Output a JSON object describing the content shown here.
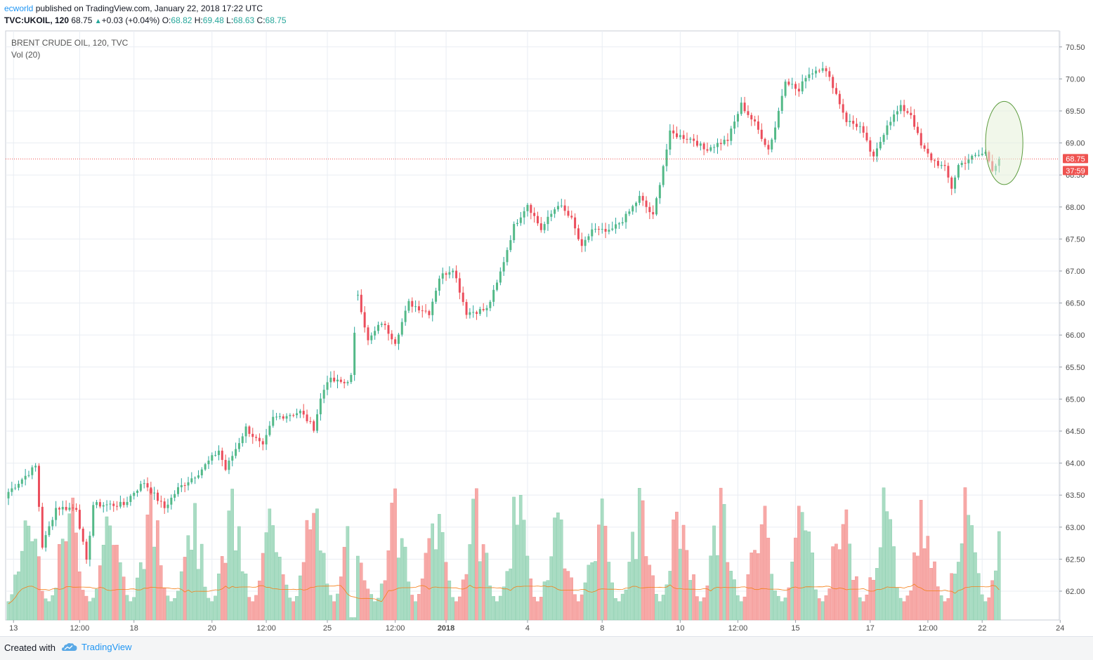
{
  "header": {
    "author": "ecworld",
    "published_text": "published on TradingView.com, January 22, 2018 17:22 UTC",
    "symbol": "TVC:UKOIL, 120",
    "last": "68.75",
    "change": "+0.03 (+0.04%)",
    "o_label": "O:",
    "o_value": "68.82",
    "h_label": "H:",
    "h_value": "69.48",
    "l_label": "L:",
    "l_value": "68.63",
    "c_label": "C:",
    "c_value": "68.75"
  },
  "legend": {
    "title": "BRENT CRUDE OIL, 120, TVC",
    "volume": "Vol (20)"
  },
  "price_badge": "68.75",
  "countdown_badge": "37:59",
  "footer": {
    "created_with": "Created with",
    "brand": "TradingView"
  },
  "colors": {
    "up": "#26a69a",
    "down": "#ef5350",
    "up_body": "#53b987",
    "down_body": "#eb4d5c",
    "vol_up": "#a9dcc3",
    "vol_down": "#f7a9a7",
    "ma": "#f57f17",
    "grid": "#e9edf3",
    "ellipse_fill": "#e6f0d8",
    "ellipse_stroke": "#5b9b3d"
  },
  "chart_data": {
    "type": "candlestick",
    "title": "BRENT CRUDE OIL, 120, TVC",
    "ylim": [
      61.55,
      70.75
    ],
    "y_ticks": [
      "62.00",
      "62.50",
      "63.00",
      "63.50",
      "64.00",
      "64.50",
      "65.00",
      "65.50",
      "66.00",
      "66.50",
      "67.00",
      "67.50",
      "68.00",
      "68.50",
      "69.00",
      "69.50",
      "70.00",
      "70.50"
    ],
    "x_ticks": [
      {
        "label": "13",
        "i": 1.5
      },
      {
        "label": "12:00",
        "i": 21
      },
      {
        "label": "18",
        "i": 37
      },
      {
        "label": "20",
        "i": 60
      },
      {
        "label": "12:00",
        "i": 76
      },
      {
        "label": "25",
        "i": 94
      },
      {
        "label": "12:00",
        "i": 114
      },
      {
        "label": "2018",
        "i": 129
      },
      {
        "label": "4",
        "i": 153
      },
      {
        "label": "8",
        "i": 175
      },
      {
        "label": "10",
        "i": 198
      },
      {
        "label": "12:00",
        "i": 215
      },
      {
        "label": "15",
        "i": 232
      },
      {
        "label": "17",
        "i": 254
      },
      {
        "label": "12:00",
        "i": 271
      },
      {
        "label": "22",
        "i": 287
      },
      {
        "label": "24",
        "i": 310
      }
    ],
    "last_price": 68.75,
    "highlight_ellipse": {
      "center_i": 293.5,
      "center_price": 69.0,
      "radius_i": 5.5,
      "radius_price": 0.65
    },
    "anchors": [
      [
        0,
        63.55
      ],
      [
        8,
        63.95
      ],
      [
        10,
        62.7
      ],
      [
        14,
        63.3
      ],
      [
        20,
        63.3
      ],
      [
        23,
        62.45
      ],
      [
        25,
        63.35
      ],
      [
        34,
        63.35
      ],
      [
        37,
        63.55
      ],
      [
        40,
        63.7
      ],
      [
        46,
        63.3
      ],
      [
        50,
        63.6
      ],
      [
        56,
        63.85
      ],
      [
        62,
        64.2
      ],
      [
        64,
        63.9
      ],
      [
        70,
        64.55
      ],
      [
        75,
        64.25
      ],
      [
        78,
        64.7
      ],
      [
        86,
        64.8
      ],
      [
        90,
        64.55
      ],
      [
        92,
        65.0
      ],
      [
        94,
        65.3
      ],
      [
        99,
        65.25
      ],
      [
        101,
        65.35
      ],
      [
        103,
        66.65
      ],
      [
        106,
        65.9
      ],
      [
        110,
        66.2
      ],
      [
        114,
        65.9
      ],
      [
        118,
        66.5
      ],
      [
        124,
        66.35
      ],
      [
        127,
        66.9
      ],
      [
        131,
        67.05
      ],
      [
        135,
        66.35
      ],
      [
        141,
        66.4
      ],
      [
        144,
        66.8
      ],
      [
        149,
        67.7
      ],
      [
        153,
        68.05
      ],
      [
        157,
        67.65
      ],
      [
        162,
        68.05
      ],
      [
        166,
        67.8
      ],
      [
        169,
        67.35
      ],
      [
        172,
        67.65
      ],
      [
        177,
        67.6
      ],
      [
        182,
        67.85
      ],
      [
        186,
        68.15
      ],
      [
        190,
        67.85
      ],
      [
        193,
        68.65
      ],
      [
        195,
        69.15
      ],
      [
        202,
        69.05
      ],
      [
        205,
        68.9
      ],
      [
        212,
        69.05
      ],
      [
        216,
        69.6
      ],
      [
        220,
        69.3
      ],
      [
        224,
        68.9
      ],
      [
        226,
        69.25
      ],
      [
        229,
        70.0
      ],
      [
        233,
        69.8
      ],
      [
        235,
        70.05
      ],
      [
        240,
        70.2
      ],
      [
        243,
        69.9
      ],
      [
        247,
        69.35
      ],
      [
        251,
        69.25
      ],
      [
        255,
        68.75
      ],
      [
        259,
        69.3
      ],
      [
        263,
        69.55
      ],
      [
        266,
        69.45
      ],
      [
        269,
        68.95
      ],
      [
        272,
        68.75
      ],
      [
        276,
        68.6
      ],
      [
        278,
        68.3
      ],
      [
        280,
        68.65
      ],
      [
        283,
        68.75
      ],
      [
        288,
        68.85
      ],
      [
        290,
        68.6
      ],
      [
        292,
        68.75
      ]
    ]
  }
}
